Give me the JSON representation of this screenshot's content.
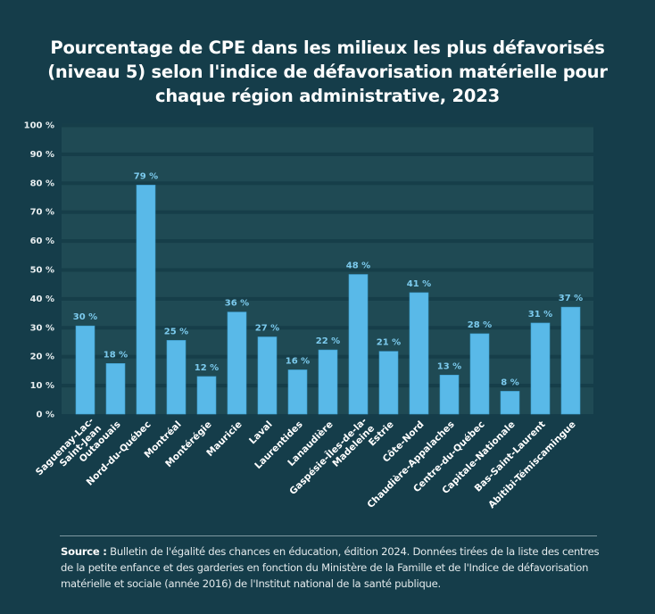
{
  "chart_data": {
    "type": "bar",
    "title": "Pourcentage de CPE dans les milieux les plus défavorisés (niveau 5) selon l'indice de défavorisation matérielle pour chaque région administrative, 2023",
    "title_lines": [
      "Pourcentage de CPE dans les milieux les plus défavorisés",
      "(niveau 5) selon l'indice de défavorisation matérielle pour",
      "chaque région administrative, 2023"
    ],
    "xlabel": "",
    "ylabel": "",
    "ylim": [
      0,
      100
    ],
    "yticks": [
      0,
      10,
      20,
      30,
      40,
      50,
      60,
      70,
      80,
      90,
      100
    ],
    "ytick_labels": [
      "0 %",
      "10 %",
      "20 %",
      "30 %",
      "40 %",
      "50 %",
      "60 %",
      "70 %",
      "80 %",
      "90 %",
      "100 %"
    ],
    "grid": true,
    "legend": "none",
    "categories": [
      "Saguenay-Lac-Saint-Jean",
      "Outaouais",
      "Nord-du-Québec",
      "Montréal",
      "Montérégie",
      "Mauricie",
      "Laval",
      "Laurentides",
      "Lanaudière",
      "Gaspésie-Îles-de-la-Madeleine",
      "Estrie",
      "Côte-Nord",
      "Chaudière-Appalaches",
      "Centre-du-Québec",
      "Capitale-Nationale",
      "Bas-Saint-Laurent",
      "Abitibi-Témiscamingue"
    ],
    "category_label_lines": [
      [
        "Saguenay-Lac-",
        "Saint-Jean"
      ],
      [
        "Outaouais"
      ],
      [
        "Nord-du-Québec"
      ],
      [
        "Montréal"
      ],
      [
        "Montérégie"
      ],
      [
        "Mauricie"
      ],
      [
        "Laval"
      ],
      [
        "Laurentides"
      ],
      [
        "Lanaudière"
      ],
      [
        "Gaspésie-Îles-de-la-",
        "Madeleine"
      ],
      [
        "Estrie"
      ],
      [
        "Côte-Nord"
      ],
      [
        "Chaudière-Appalaches"
      ],
      [
        "Centre-du-Québec"
      ],
      [
        "Capitale-Nationale"
      ],
      [
        "Bas-Saint-Laurent"
      ],
      [
        "Abitibi-Témiscamingue"
      ]
    ],
    "values": [
      30,
      18,
      79,
      25,
      12,
      36,
      27,
      16,
      22,
      48,
      21,
      41,
      13,
      28,
      8,
      31,
      37
    ],
    "bar_heights_approx": [
      30.5,
      17.5,
      79.2,
      25.5,
      13,
      35.3,
      26.7,
      15.3,
      22.2,
      48.3,
      21.7,
      42,
      13.5,
      27.8,
      7.9,
      31.5,
      37
    ],
    "data_labels": [
      "30 %",
      "18 %",
      "79 %",
      "25 %",
      "12 %",
      "36 %",
      "27 %",
      "16 %",
      "22 %",
      "48 %",
      "21 %",
      "41 %",
      "13 %",
      "28 %",
      "8 %",
      "31 %",
      "37 %"
    ],
    "colors": {
      "bar": "#59b9e8",
      "data_label": "#7ccbee",
      "background": "#153d4a",
      "plot_band": "#1f4a54",
      "grid_line": "#163e49"
    }
  },
  "source": {
    "label": "Source :",
    "text": " Bulletin de l'égalité des chances en éducation, édition 2024. Données tirées de la liste des centres de la petite enfance et des garderies en fonction du Ministère de la Famille et de l'Indice de défavorisation matérielle et sociale (année 2016) de l'Institut national de la santé publique."
  }
}
